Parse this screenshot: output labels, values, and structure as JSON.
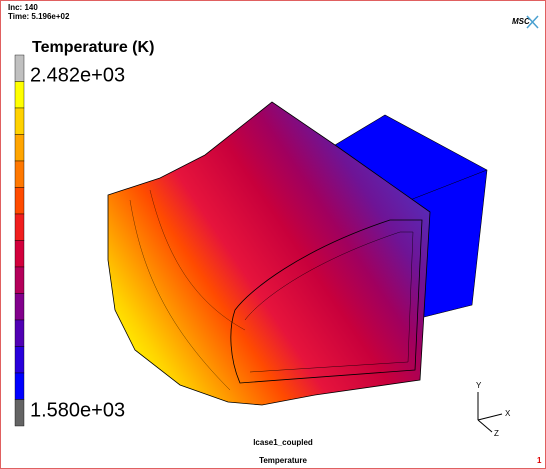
{
  "header": {
    "inc": "Inc:  140",
    "time": "Time: 5.196e+02",
    "logo": "MSC"
  },
  "legend": {
    "title": "Temperature (K)",
    "max": "2.482e+03",
    "min": "1.580e+03",
    "colors": [
      "#c0c0c0",
      "#ffff00",
      "#ffd200",
      "#ffa500",
      "#ff7800",
      "#ff4b00",
      "#f01e1e",
      "#d2003c",
      "#b4005a",
      "#82008c",
      "#5000b4",
      "#2800dc",
      "#0000ff",
      "#646464"
    ]
  },
  "triad": {
    "x": "X",
    "y": "Y",
    "z": "Z"
  },
  "footer": {
    "case": "lcase1_coupled",
    "variable": "Temperature",
    "page": "1"
  }
}
